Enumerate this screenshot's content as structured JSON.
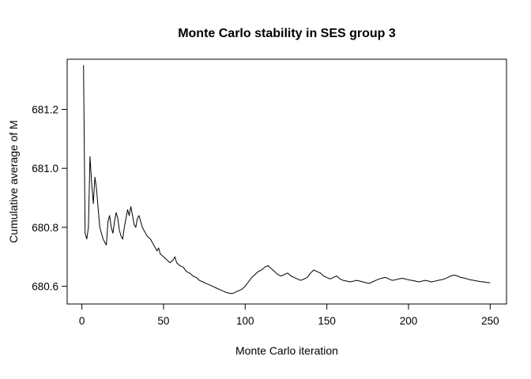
{
  "chart_data": {
    "type": "line",
    "title": "Monte Carlo stability in SES group 3",
    "xlabel": "Monte Carlo iteration",
    "ylabel": "Cumulative average of M",
    "x_ticks": [
      0,
      50,
      100,
      150,
      200,
      250
    ],
    "x_tick_labels": [
      "0",
      "50",
      "100",
      "150",
      "200",
      "250"
    ],
    "y_ticks": [
      680.6,
      680.8,
      681.0,
      681.2
    ],
    "y_tick_labels": [
      "680.6",
      "680.8",
      "681.0",
      "681.2"
    ],
    "xlim": [
      -9,
      260
    ],
    "ylim": [
      680.54,
      681.37
    ],
    "grid": false,
    "legend": "none",
    "line_color": "#000000",
    "background_color": "#ffffff",
    "points": [
      [
        1,
        681.35
      ],
      [
        2,
        680.78
      ],
      [
        3,
        680.76
      ],
      [
        4,
        680.8
      ],
      [
        5,
        681.04
      ],
      [
        6,
        680.95
      ],
      [
        7,
        680.88
      ],
      [
        8,
        680.97
      ],
      [
        9,
        680.93
      ],
      [
        10,
        680.86
      ],
      [
        11,
        680.8
      ],
      [
        12,
        680.78
      ],
      [
        13,
        680.76
      ],
      [
        14,
        680.75
      ],
      [
        15,
        680.74
      ],
      [
        16,
        680.82
      ],
      [
        17,
        680.84
      ],
      [
        18,
        680.8
      ],
      [
        19,
        680.78
      ],
      [
        20,
        680.82
      ],
      [
        21,
        680.85
      ],
      [
        22,
        680.83
      ],
      [
        23,
        680.79
      ],
      [
        24,
        680.77
      ],
      [
        25,
        680.76
      ],
      [
        26,
        680.8
      ],
      [
        27,
        680.83
      ],
      [
        28,
        680.86
      ],
      [
        29,
        680.84
      ],
      [
        30,
        680.87
      ],
      [
        31,
        680.84
      ],
      [
        32,
        680.81
      ],
      [
        33,
        680.8
      ],
      [
        34,
        680.83
      ],
      [
        35,
        680.84
      ],
      [
        36,
        680.82
      ],
      [
        37,
        680.8
      ],
      [
        38,
        680.79
      ],
      [
        39,
        680.78
      ],
      [
        40,
        680.77
      ],
      [
        42,
        680.76
      ],
      [
        44,
        680.74
      ],
      [
        46,
        680.72
      ],
      [
        47,
        680.73
      ],
      [
        48,
        680.71
      ],
      [
        50,
        680.7
      ],
      [
        52,
        680.69
      ],
      [
        54,
        680.68
      ],
      [
        56,
        680.69
      ],
      [
        57,
        680.7
      ],
      [
        58,
        680.68
      ],
      [
        60,
        680.67
      ],
      [
        62,
        680.665
      ],
      [
        64,
        680.65
      ],
      [
        66,
        680.645
      ],
      [
        68,
        680.635
      ],
      [
        70,
        680.63
      ],
      [
        72,
        680.62
      ],
      [
        74,
        680.615
      ],
      [
        76,
        680.61
      ],
      [
        78,
        680.605
      ],
      [
        80,
        680.6
      ],
      [
        82,
        680.595
      ],
      [
        84,
        680.59
      ],
      [
        86,
        680.585
      ],
      [
        88,
        680.58
      ],
      [
        90,
        680.577
      ],
      [
        92,
        680.575
      ],
      [
        94,
        680.58
      ],
      [
        96,
        680.585
      ],
      [
        98,
        680.59
      ],
      [
        100,
        680.6
      ],
      [
        102,
        680.615
      ],
      [
        104,
        680.63
      ],
      [
        106,
        680.64
      ],
      [
        108,
        680.65
      ],
      [
        110,
        680.655
      ],
      [
        112,
        680.665
      ],
      [
        114,
        680.67
      ],
      [
        116,
        680.66
      ],
      [
        118,
        680.65
      ],
      [
        120,
        680.64
      ],
      [
        122,
        680.635
      ],
      [
        124,
        680.64
      ],
      [
        126,
        680.645
      ],
      [
        128,
        680.635
      ],
      [
        130,
        680.63
      ],
      [
        132,
        680.625
      ],
      [
        134,
        680.62
      ],
      [
        136,
        680.625
      ],
      [
        138,
        680.63
      ],
      [
        140,
        680.645
      ],
      [
        142,
        680.655
      ],
      [
        144,
        680.65
      ],
      [
        146,
        680.645
      ],
      [
        148,
        680.635
      ],
      [
        150,
        680.63
      ],
      [
        152,
        680.625
      ],
      [
        154,
        680.63
      ],
      [
        156,
        680.635
      ],
      [
        158,
        680.625
      ],
      [
        160,
        680.62
      ],
      [
        162,
        680.618
      ],
      [
        164,
        680.615
      ],
      [
        166,
        680.617
      ],
      [
        168,
        680.62
      ],
      [
        170,
        680.618
      ],
      [
        172,
        680.615
      ],
      [
        174,
        680.612
      ],
      [
        176,
        680.61
      ],
      [
        178,
        680.615
      ],
      [
        180,
        680.62
      ],
      [
        182,
        680.625
      ],
      [
        184,
        680.628
      ],
      [
        186,
        680.63
      ],
      [
        188,
        680.625
      ],
      [
        190,
        680.62
      ],
      [
        192,
        680.622
      ],
      [
        194,
        680.625
      ],
      [
        196,
        680.627
      ],
      [
        198,
        680.625
      ],
      [
        200,
        680.622
      ],
      [
        202,
        680.62
      ],
      [
        204,
        680.618
      ],
      [
        206,
        680.615
      ],
      [
        208,
        680.617
      ],
      [
        210,
        680.62
      ],
      [
        212,
        680.618
      ],
      [
        214,
        680.615
      ],
      [
        216,
        680.617
      ],
      [
        218,
        680.62
      ],
      [
        220,
        680.622
      ],
      [
        222,
        680.625
      ],
      [
        224,
        680.63
      ],
      [
        226,
        680.635
      ],
      [
        228,
        680.638
      ],
      [
        230,
        680.635
      ],
      [
        232,
        680.63
      ],
      [
        234,
        680.628
      ],
      [
        236,
        680.625
      ],
      [
        238,
        680.622
      ],
      [
        240,
        680.62
      ],
      [
        242,
        680.618
      ],
      [
        244,
        680.616
      ],
      [
        246,
        680.615
      ],
      [
        248,
        680.613
      ],
      [
        250,
        680.612
      ]
    ]
  }
}
